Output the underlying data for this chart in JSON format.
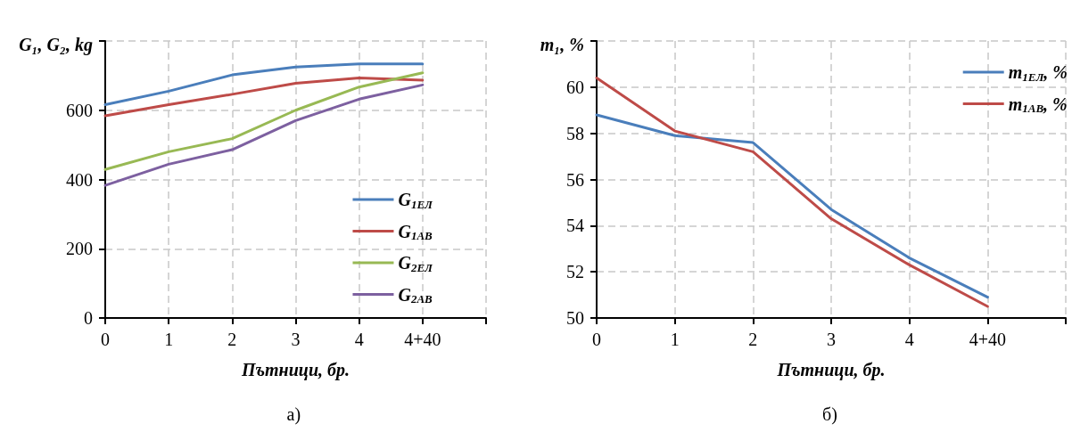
{
  "chart_data": [
    {
      "type": "line",
      "xlabel": "Пътници, бр.",
      "ylabel": "G₁, G₂, kg",
      "categories": [
        "0",
        "1",
        "2",
        "3",
        "4",
        "4+40",
        null
      ],
      "series": [
        {
          "name": "G$_{1ЕЛ}$",
          "color": "#4a7ebb",
          "values": [
            616,
            655,
            702,
            725,
            734,
            734,
            null
          ]
        },
        {
          "name": "G$_{1АВ}$",
          "color": "#be4b48",
          "values": [
            584,
            616,
            646,
            678,
            693,
            687,
            null
          ]
        },
        {
          "name": "G$_{2ЕЛ}$",
          "color": "#98b954",
          "values": [
            429,
            480,
            518,
            600,
            667,
            708,
            null
          ]
        },
        {
          "name": "G$_{2АВ}$",
          "color": "#7d60a0",
          "values": [
            383,
            444,
            486,
            570,
            632,
            673,
            null
          ]
        }
      ],
      "ylim": [
        0,
        800
      ],
      "yticks": [
        0,
        200,
        400,
        600,
        {
          "value": 800,
          "label": null
        }
      ],
      "grid": true,
      "legend": "bottom right",
      "marker": "none",
      "line_style": "solid",
      "annotations": [
        "а)"
      ]
    },
    {
      "type": "line",
      "xlabel": "Пътници, бр.",
      "ylabel": "m₁, %",
      "categories": [
        "0",
        "1",
        "2",
        "3",
        "4",
        "4+40",
        null
      ],
      "series": [
        {
          "name": "m$_{1ЕЛ}$, %",
          "color": "#4a7ebb",
          "values": [
            58.8,
            57.9,
            57.6,
            54.7,
            52.6,
            50.9,
            null
          ]
        },
        {
          "name": "m$_{1АВ}$, %",
          "color": "#be4b48",
          "values": [
            60.4,
            58.1,
            57.2,
            54.3,
            52.3,
            50.5,
            null
          ]
        }
      ],
      "ylim": [
        50,
        62
      ],
      "yticks": [
        50,
        52,
        54,
        56,
        58,
        60,
        {
          "value": 62,
          "label": null
        }
      ],
      "grid": true,
      "legend": "top right",
      "marker": "none",
      "line_style": "solid",
      "annotations": [
        "б)"
      ]
    }
  ]
}
